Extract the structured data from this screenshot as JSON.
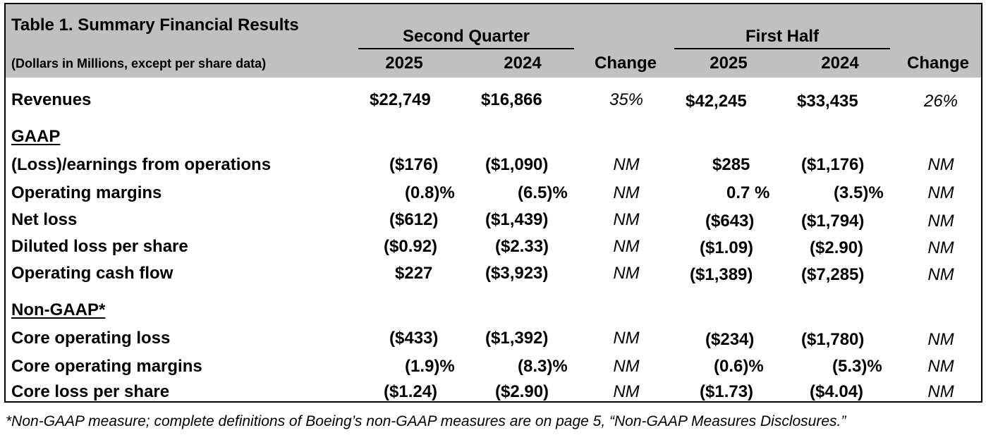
{
  "header": {
    "title": "Table 1. Summary Financial Results",
    "subtitle": "(Dollars in Millions, except per share data)",
    "group_q": "Second Quarter",
    "group_h": "First Half",
    "q_2025": "2025",
    "q_2024": "2024",
    "h_2025": "2025",
    "h_2024": "2024",
    "change_q": "Change",
    "change_h": "Change"
  },
  "revenues": {
    "label": "Revenues",
    "q2025": "$22,749",
    "q2024": "$16,866",
    "qchg": "35%",
    "h2025": "$42,245",
    "h2024": "$33,435",
    "hchg": "26%"
  },
  "gaap": {
    "heading": "GAAP",
    "rows": [
      {
        "label": "(Loss)/earnings from operations",
        "q2025": "($176)",
        "q2024": "($1,090)",
        "qchg": "NM",
        "h2025": "$285",
        "h2024": "($1,176)",
        "hchg": "NM"
      },
      {
        "label": "Operating margins",
        "q2025": "(0.8)%",
        "q2024": "(6.5)%",
        "qchg": "NM",
        "h2025": "0.7 %",
        "h2024": "(3.5)%",
        "hchg": "NM"
      },
      {
        "label": "Net loss",
        "q2025": "($612)",
        "q2024": "($1,439)",
        "qchg": "NM",
        "h2025": "($643)",
        "h2024": "($1,794)",
        "hchg": "NM"
      },
      {
        "label": "Diluted loss per share",
        "q2025": "($0.92)",
        "q2024": "($2.33)",
        "qchg": "NM",
        "h2025": "($1.09)",
        "h2024": "($2.90)",
        "hchg": "NM"
      },
      {
        "label": "Operating cash flow",
        "q2025": "$227",
        "q2024": "($3,923)",
        "qchg": "NM",
        "h2025": "($1,389)",
        "h2024": "($7,285)",
        "hchg": "NM"
      }
    ]
  },
  "nongaap": {
    "heading": "Non-GAAP*",
    "rows": [
      {
        "label": "Core operating loss",
        "q2025": "($433)",
        "q2024": "($1,392)",
        "qchg": "NM",
        "h2025": "($234)",
        "h2024": "($1,780)",
        "hchg": "NM"
      },
      {
        "label": "Core operating margins",
        "q2025": "(1.9)%",
        "q2024": "(8.3)%",
        "qchg": "NM",
        "h2025": "(0.6)%",
        "h2024": "(5.3)%",
        "hchg": "NM"
      },
      {
        "label": "Core loss per share",
        "q2025": "($1.24)",
        "q2024": "($2.90)",
        "qchg": "NM",
        "h2025": "($1.73)",
        "h2024": "($4.04)",
        "hchg": "NM"
      }
    ]
  },
  "footnote": "*Non-GAAP measure; complete definitions of Boeing’s non-GAAP measures are on page 5, “Non-GAAP Measures Disclosures.”",
  "colors": {
    "header_bg": "#c0c0c0",
    "text": "#000000"
  }
}
